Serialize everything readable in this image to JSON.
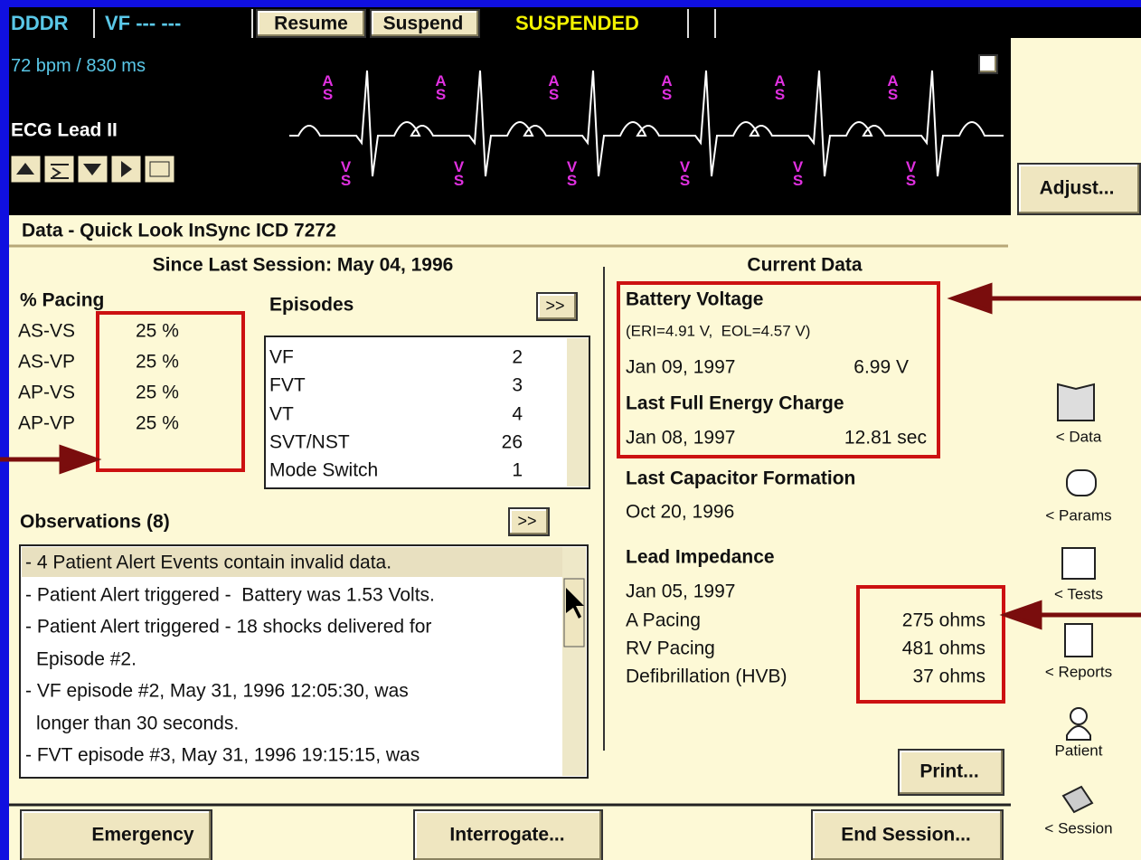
{
  "top_bar": {
    "mode": "DDDR",
    "rhythm": "VF --- ---",
    "resume": "Resume",
    "suspend": "Suspend",
    "status": "SUSPENDED"
  },
  "ecg": {
    "rate": "72 bpm / 830 ms",
    "lead": "ECG Lead II",
    "atrial_marker": "AS",
    "ventricular_marker": "VS"
  },
  "adjust": "Adjust...",
  "data": {
    "title": "Data - Quick Look InSync ICD 7272",
    "since": "Since Last Session: May 04, 1996",
    "expand": ">>",
    "pacing": {
      "heading": "% Pacing",
      "rows": [
        [
          "AS-VS",
          "25 %"
        ],
        [
          "AS-VP",
          "25 %"
        ],
        [
          "AP-VS",
          "25 %"
        ],
        [
          "AP-VP",
          "25 %"
        ]
      ]
    },
    "episodes": {
      "heading": "Episodes",
      "rows": [
        [
          "VF",
          "2"
        ],
        [
          "FVT",
          "3"
        ],
        [
          "VT",
          "4"
        ],
        [
          "SVT/NST",
          "26"
        ],
        [
          "Mode Switch",
          "1"
        ]
      ]
    },
    "observations": {
      "heading": "Observations (8)",
      "lines": [
        "- 4 Patient Alert Events contain invalid data.",
        "- Patient Alert triggered -  Battery was 1.53 Volts.",
        "- Patient Alert triggered - 18 shocks delivered for",
        "Episode #2.",
        "- VF episode #2, May 31, 1996 12:05:30, was",
        "longer than 30 seconds.",
        "- FVT episode #3, May 31, 1996 19:15:15, was"
      ]
    },
    "current": {
      "heading": "Current Data",
      "battery_heading": "Battery Voltage",
      "battery_limits": "(ERI=4.91 V,  EOL=4.57 V)",
      "battery_date": "Jan 09, 1997",
      "battery_value": "6.99 V",
      "charge_heading": "Last Full Energy Charge",
      "charge_date": "Jan 08, 1997",
      "charge_value": "12.81 sec",
      "capacitor_heading": "Last Capacitor Formation",
      "capacitor_date": "Oct 20, 1996",
      "impedance_heading": "Lead Impedance",
      "impedance_date": "Jan 05, 1997",
      "impedance": [
        [
          "A Pacing",
          "275 ohms"
        ],
        [
          "RV Pacing",
          "481 ohms"
        ],
        [
          "Defibrillation (HVB)",
          "37 ohms"
        ]
      ]
    }
  },
  "nav": [
    "< Data",
    "< Params",
    "< Tests",
    "< Reports",
    "Patient",
    "< Session"
  ],
  "buttons": {
    "print": "Print...",
    "emergency": "Emergency",
    "interrogate": "Interrogate...",
    "end_session": "End Session..."
  }
}
